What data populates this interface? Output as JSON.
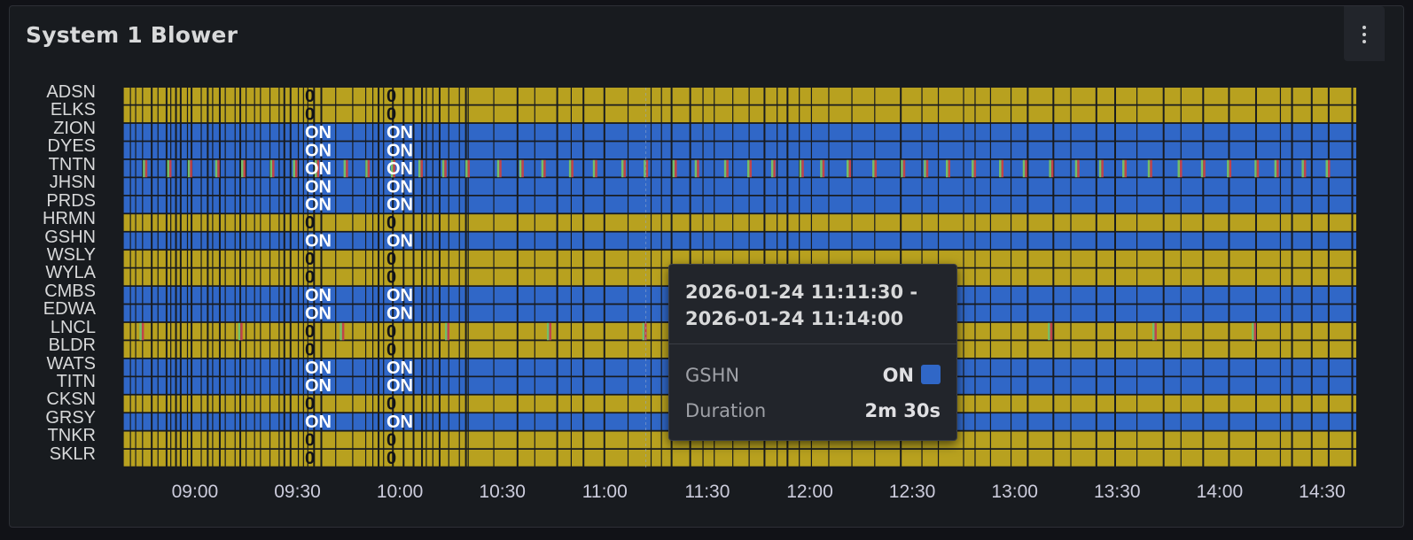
{
  "panel": {
    "title": "System 1 Blower",
    "menu_icon": "kebab-menu-icon"
  },
  "colors": {
    "on": "#3067c7",
    "off": "#b8a11f",
    "fault": "#c0444b",
    "transition": "#73bf69",
    "background": "#181b1f"
  },
  "rows": [
    {
      "name": "ADSN",
      "state": "0"
    },
    {
      "name": "ELKS",
      "state": "0"
    },
    {
      "name": "ZION",
      "state": "ON"
    },
    {
      "name": "DYES",
      "state": "ON"
    },
    {
      "name": "TNTN",
      "state": "ON"
    },
    {
      "name": "JHSN",
      "state": "ON"
    },
    {
      "name": "PRDS",
      "state": "ON"
    },
    {
      "name": "HRMN",
      "state": "0"
    },
    {
      "name": "GSHN",
      "state": "ON"
    },
    {
      "name": "WSLY",
      "state": "0"
    },
    {
      "name": "WYLA",
      "state": "0"
    },
    {
      "name": "CMBS",
      "state": "ON"
    },
    {
      "name": "EDWA",
      "state": "ON"
    },
    {
      "name": "LNCL",
      "state": "0"
    },
    {
      "name": "BLDR",
      "state": "0"
    },
    {
      "name": "WATS",
      "state": "ON"
    },
    {
      "name": "TITN",
      "state": "ON"
    },
    {
      "name": "CKSN",
      "state": "0"
    },
    {
      "name": "GRSY",
      "state": "ON"
    },
    {
      "name": "TNKR",
      "state": "0"
    },
    {
      "name": "SKLR",
      "state": "0"
    }
  ],
  "x_ticks": [
    "09:00",
    "09:30",
    "10:00",
    "10:30",
    "11:00",
    "11:30",
    "12:00",
    "12:30",
    "13:00",
    "13:30",
    "14:00",
    "14:30"
  ],
  "tooltip": {
    "range_start": "2026-01-24 11:11:30 -",
    "range_end": "2026-01-24 11:14:00",
    "series_name": "GSHN",
    "series_value": "ON",
    "duration_label": "Duration",
    "duration_value": "2m 30s"
  }
}
